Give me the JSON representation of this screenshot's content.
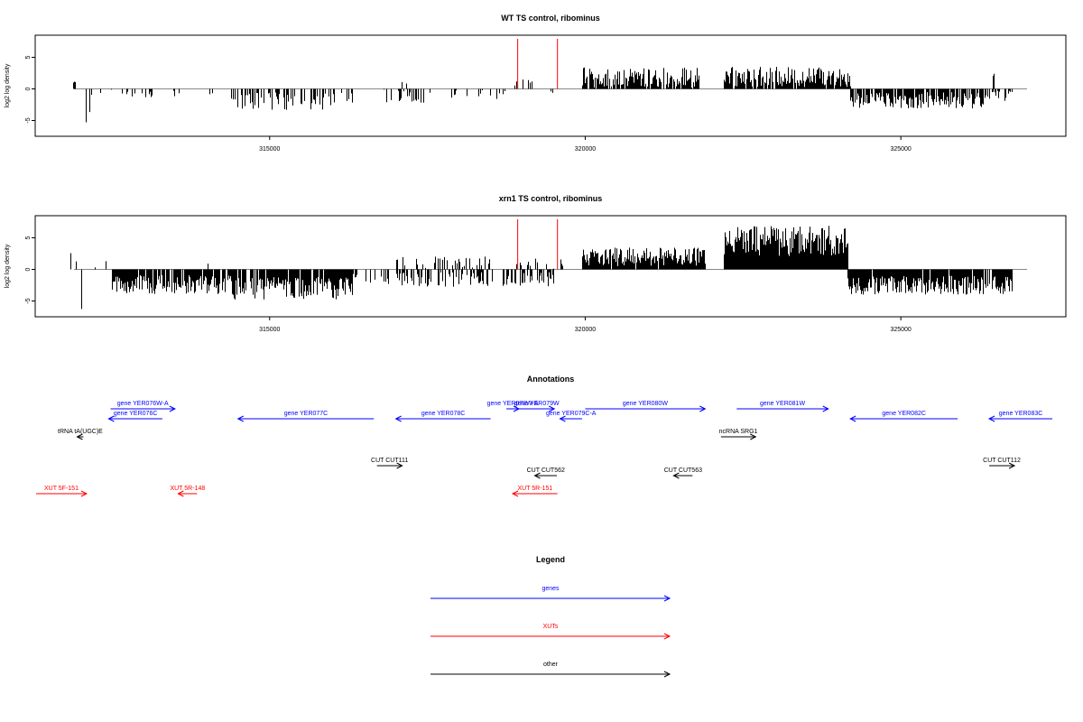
{
  "colors": {
    "axis": "#000000",
    "baseline": "#888888",
    "marker": "#ff0000",
    "genes": "#0000ff",
    "xuts": "#ff0000",
    "other": "#000000"
  },
  "chart_data": [
    {
      "type": "bar",
      "title": "WT TS control, ribominus",
      "ylabel": "log2 log density",
      "xlim": [
        311300,
        327600
      ],
      "ylim": [
        -7.5,
        8.5
      ],
      "xticks": [
        315000,
        320000,
        325000
      ],
      "xtick_labels": [
        "315000",
        "320000",
        "325000"
      ],
      "yticks": [
        -5,
        0,
        5
      ],
      "ytick_labels": [
        "-5",
        "0",
        "5"
      ],
      "markers": [
        318930,
        319560
      ],
      "regions": [
        {
          "start": 311890,
          "end": 311910,
          "mean": 1.3,
          "amp": 0.5,
          "density": 1.0
        },
        {
          "start": 312000,
          "end": 312160,
          "mean": -5.0,
          "amp": 2.0,
          "density": 0.15
        },
        {
          "start": 312160,
          "end": 313800,
          "mean": -0.9,
          "amp": 0.8,
          "density": 0.1
        },
        {
          "start": 313800,
          "end": 314200,
          "mean": -0.8,
          "amp": 0.6,
          "density": 0.05
        },
        {
          "start": 314200,
          "end": 316300,
          "mean": -1.9,
          "amp": 1.4,
          "density": 0.35
        },
        {
          "start": 316300,
          "end": 316700,
          "mean": -0.9,
          "amp": 0.5,
          "density": 0.05
        },
        {
          "start": 316800,
          "end": 317500,
          "mean": -1.1,
          "amp": 1.3,
          "density": 0.35
        },
        {
          "start": 317000,
          "end": 317250,
          "mean": 1.2,
          "amp": 1.0,
          "density": 0.2
        },
        {
          "start": 317500,
          "end": 318800,
          "mean": -0.9,
          "amp": 0.8,
          "density": 0.15
        },
        {
          "start": 318880,
          "end": 319150,
          "mean": 1.4,
          "amp": 0.9,
          "density": 0.3
        },
        {
          "start": 319400,
          "end": 319800,
          "mean": -0.5,
          "amp": 0.4,
          "density": 0.06
        },
        {
          "start": 319950,
          "end": 321800,
          "mean": 1.8,
          "amp": 1.6,
          "density": 0.85
        },
        {
          "start": 322200,
          "end": 324200,
          "mean": 1.9,
          "amp": 1.6,
          "density": 0.85
        },
        {
          "start": 324200,
          "end": 326400,
          "mean": -1.8,
          "amp": 1.3,
          "density": 0.75
        },
        {
          "start": 326400,
          "end": 326750,
          "mean": -1.1,
          "amp": 0.8,
          "density": 0.5
        },
        {
          "start": 326450,
          "end": 326470,
          "mean": 2.3,
          "amp": 0.3,
          "density": 1.0
        }
      ]
    },
    {
      "type": "bar",
      "title": "xrn1 TS control, ribominus",
      "ylabel": "log2 log density",
      "xlim": [
        311300,
        327600
      ],
      "ylim": [
        -7.5,
        8.5
      ],
      "xticks": [
        315000,
        320000,
        325000
      ],
      "xtick_labels": [
        "315000",
        "320000",
        "325000"
      ],
      "yticks": [
        -5,
        0,
        5
      ],
      "ytick_labels": [
        "-5",
        "0",
        "5"
      ],
      "markers": [
        318930,
        319560
      ],
      "regions": [
        {
          "start": 311850,
          "end": 312000,
          "mean": 1.8,
          "amp": 1.2,
          "density": 0.3
        },
        {
          "start": 312000,
          "end": 312150,
          "mean": -6.0,
          "amp": 0.8,
          "density": 0.1
        },
        {
          "start": 312200,
          "end": 312500,
          "mean": 0.9,
          "amp": 0.6,
          "density": 0.08
        },
        {
          "start": 312500,
          "end": 314400,
          "mean": -2.4,
          "amp": 1.5,
          "density": 0.85
        },
        {
          "start": 313900,
          "end": 314200,
          "mean": 0.9,
          "amp": 0.6,
          "density": 0.1
        },
        {
          "start": 314400,
          "end": 316300,
          "mean": -3.0,
          "amp": 1.8,
          "density": 0.85
        },
        {
          "start": 316300,
          "end": 316800,
          "mean": -1.4,
          "amp": 0.9,
          "density": 0.25
        },
        {
          "start": 316800,
          "end": 318800,
          "mean": -1.6,
          "amp": 1.2,
          "density": 0.45
        },
        {
          "start": 317000,
          "end": 318500,
          "mean": 1.2,
          "amp": 1.0,
          "density": 0.3
        },
        {
          "start": 318800,
          "end": 319500,
          "mean": -1.5,
          "amp": 1.2,
          "density": 0.55
        },
        {
          "start": 318900,
          "end": 319700,
          "mean": 0.9,
          "amp": 0.8,
          "density": 0.25
        },
        {
          "start": 319950,
          "end": 321900,
          "mean": 2.0,
          "amp": 1.5,
          "density": 0.95
        },
        {
          "start": 322200,
          "end": 324150,
          "mean": 4.5,
          "amp": 2.4,
          "density": 1.0
        },
        {
          "start": 324150,
          "end": 326750,
          "mean": -2.5,
          "amp": 1.5,
          "density": 0.95
        }
      ]
    }
  ],
  "annotations": {
    "title": "Annotations",
    "xlim": [
      311300,
      327600
    ],
    "features": [
      {
        "label": "gene YER076W-A",
        "start": 312480,
        "end": 313500,
        "strand": "+",
        "kind": "genes",
        "level": 0
      },
      {
        "label": "gene YER076C",
        "start": 312450,
        "end": 313300,
        "strand": "-",
        "kind": "genes",
        "level": 1
      },
      {
        "label": "tRNA tA(UGC)E",
        "start": 311950,
        "end": 312050,
        "strand": "-",
        "kind": "other",
        "level": 2
      },
      {
        "label": "gene YER077C",
        "start": 314500,
        "end": 316650,
        "strand": "-",
        "kind": "genes",
        "level": 1
      },
      {
        "label": "gene YER078C",
        "start": 317000,
        "end": 318500,
        "strand": "-",
        "kind": "genes",
        "level": 1
      },
      {
        "label": "gene YER078W-A",
        "start": 318750,
        "end": 318950,
        "strand": "+",
        "kind": "genes",
        "level": 0
      },
      {
        "label": "gene YER079W",
        "start": 318950,
        "end": 319510,
        "strand": "+",
        "kind": "genes",
        "level": 0
      },
      {
        "label": "gene YER079C-A",
        "start": 319600,
        "end": 319950,
        "strand": "-",
        "kind": "genes",
        "level": 1
      },
      {
        "label": "gene YER080W",
        "start": 320000,
        "end": 321900,
        "strand": "+",
        "kind": "genes",
        "level": 0
      },
      {
        "label": "ncRNA SRG1",
        "start": 322150,
        "end": 322700,
        "strand": "+",
        "kind": "other",
        "level": 2
      },
      {
        "label": "gene YER081W",
        "start": 322400,
        "end": 323850,
        "strand": "+",
        "kind": "genes",
        "level": 0
      },
      {
        "label": "gene YER082C",
        "start": 324200,
        "end": 325900,
        "strand": "-",
        "kind": "genes",
        "level": 1
      },
      {
        "label": "gene YER083C",
        "start": 326400,
        "end": 327400,
        "strand": "-",
        "kind": "genes",
        "level": 1
      },
      {
        "label": "CUT CUT111",
        "start": 316700,
        "end": 317100,
        "strand": "+",
        "kind": "other",
        "level": 3
      },
      {
        "label": "CUT CUT562",
        "start": 319200,
        "end": 319550,
        "strand": "-",
        "kind": "other",
        "level": 4
      },
      {
        "label": "CUT CUT563",
        "start": 321400,
        "end": 321700,
        "strand": "-",
        "kind": "other",
        "level": 4
      },
      {
        "label": "CUT CUT112",
        "start": 326400,
        "end": 326800,
        "strand": "+",
        "kind": "other",
        "level": 3
      },
      {
        "label": "XUT 5F-151",
        "start": 311300,
        "end": 312100,
        "strand": "+",
        "kind": "xuts",
        "level": 5
      },
      {
        "label": "XUT 5R-148",
        "start": 313550,
        "end": 313850,
        "strand": "-",
        "kind": "xuts",
        "level": 5
      },
      {
        "label": "XUT 5R-151",
        "start": 318850,
        "end": 319560,
        "strand": "-",
        "kind": "xuts",
        "level": 5
      }
    ]
  },
  "legend": {
    "title": "Legend",
    "items": [
      {
        "label": "genes",
        "kind": "genes"
      },
      {
        "label": "XUTs",
        "kind": "xuts"
      },
      {
        "label": "other",
        "kind": "other"
      }
    ]
  }
}
